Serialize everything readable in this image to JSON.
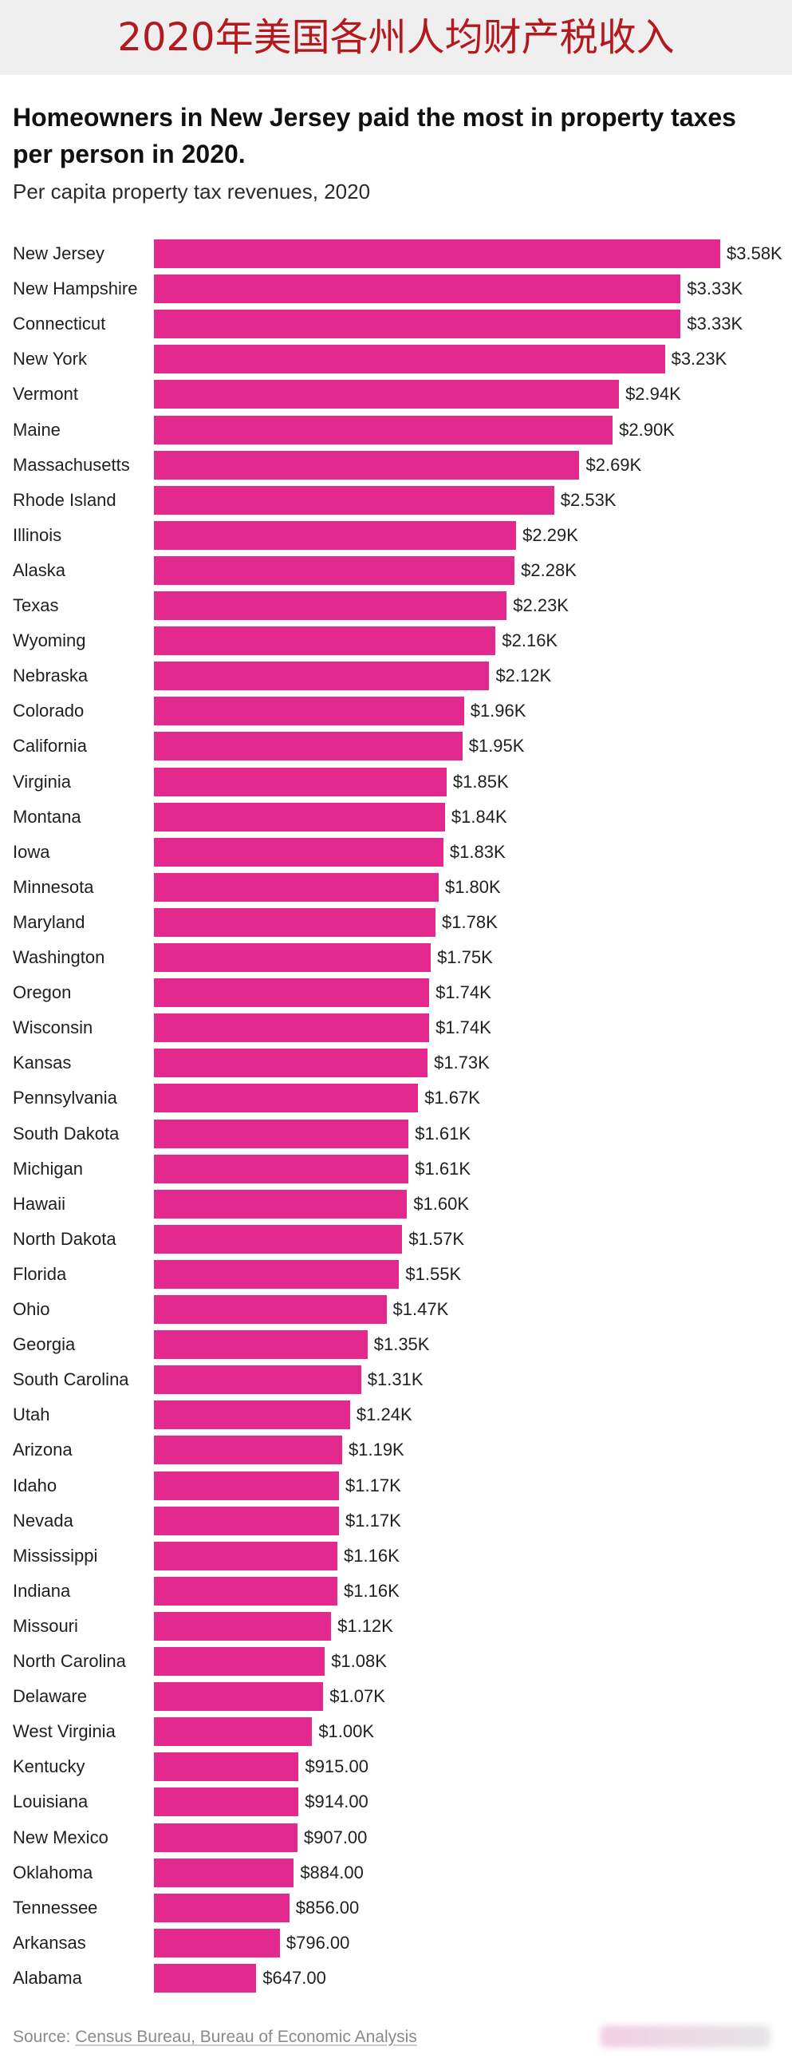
{
  "banner": {
    "title": "2020年美国各州人均财产税收入"
  },
  "colors": {
    "banner_background": "#efefef",
    "banner_text": "#b3191f",
    "bar": "#e3298e",
    "title_text": "#111111",
    "label_text": "#1f1f1f",
    "source_text": "#8a8a8a"
  },
  "chart_data": {
    "type": "bar",
    "orientation": "horizontal",
    "title": "Homeowners in New Jersey paid the most in property taxes per person in 2020.",
    "subtitle": "Per capita property tax revenues, 2020",
    "categories": [
      "New Jersey",
      "New Hampshire",
      "Connecticut",
      "New York",
      "Vermont",
      "Maine",
      "Massachusetts",
      "Rhode Island",
      "Illinois",
      "Alaska",
      "Texas",
      "Wyoming",
      "Nebraska",
      "Colorado",
      "California",
      "Virginia",
      "Montana",
      "Iowa",
      "Minnesota",
      "Maryland",
      "Washington",
      "Oregon",
      "Wisconsin",
      "Kansas",
      "Pennsylvania",
      "South Dakota",
      "Michigan",
      "Hawaii",
      "North Dakota",
      "Florida",
      "Ohio",
      "Georgia",
      "South Carolina",
      "Utah",
      "Arizona",
      "Idaho",
      "Nevada",
      "Mississippi",
      "Indiana",
      "Missouri",
      "North Carolina",
      "Delaware",
      "West Virginia",
      "Kentucky",
      "Louisiana",
      "New Mexico",
      "Oklahoma",
      "Tennessee",
      "Arkansas",
      "Alabama"
    ],
    "values": [
      3580,
      3330,
      3330,
      3230,
      2940,
      2900,
      2690,
      2530,
      2290,
      2280,
      2230,
      2160,
      2120,
      1960,
      1950,
      1850,
      1840,
      1830,
      1800,
      1780,
      1750,
      1740,
      1740,
      1730,
      1670,
      1610,
      1610,
      1600,
      1570,
      1550,
      1470,
      1350,
      1310,
      1240,
      1190,
      1170,
      1170,
      1160,
      1160,
      1120,
      1080,
      1070,
      1000,
      915,
      914,
      907,
      884,
      856,
      796,
      647
    ],
    "value_labels": [
      "$3.58K",
      "$3.33K",
      "$3.33K",
      "$3.23K",
      "$2.94K",
      "$2.90K",
      "$2.69K",
      "$2.53K",
      "$2.29K",
      "$2.28K",
      "$2.23K",
      "$2.16K",
      "$2.12K",
      "$1.96K",
      "$1.95K",
      "$1.85K",
      "$1.84K",
      "$1.83K",
      "$1.80K",
      "$1.78K",
      "$1.75K",
      "$1.74K",
      "$1.74K",
      "$1.73K",
      "$1.67K",
      "$1.61K",
      "$1.61K",
      "$1.60K",
      "$1.57K",
      "$1.55K",
      "$1.47K",
      "$1.35K",
      "$1.31K",
      "$1.24K",
      "$1.19K",
      "$1.17K",
      "$1.17K",
      "$1.16K",
      "$1.16K",
      "$1.12K",
      "$1.08K",
      "$1.07K",
      "$1.00K",
      "$915.00",
      "$914.00",
      "$907.00",
      "$884.00",
      "$856.00",
      "$796.00",
      "$647.00"
    ],
    "xlim": [
      0,
      3580
    ],
    "grid": false
  },
  "source": {
    "prefix": "Source:",
    "link_text": "Census Bureau, Bureau of Economic Analysis"
  }
}
